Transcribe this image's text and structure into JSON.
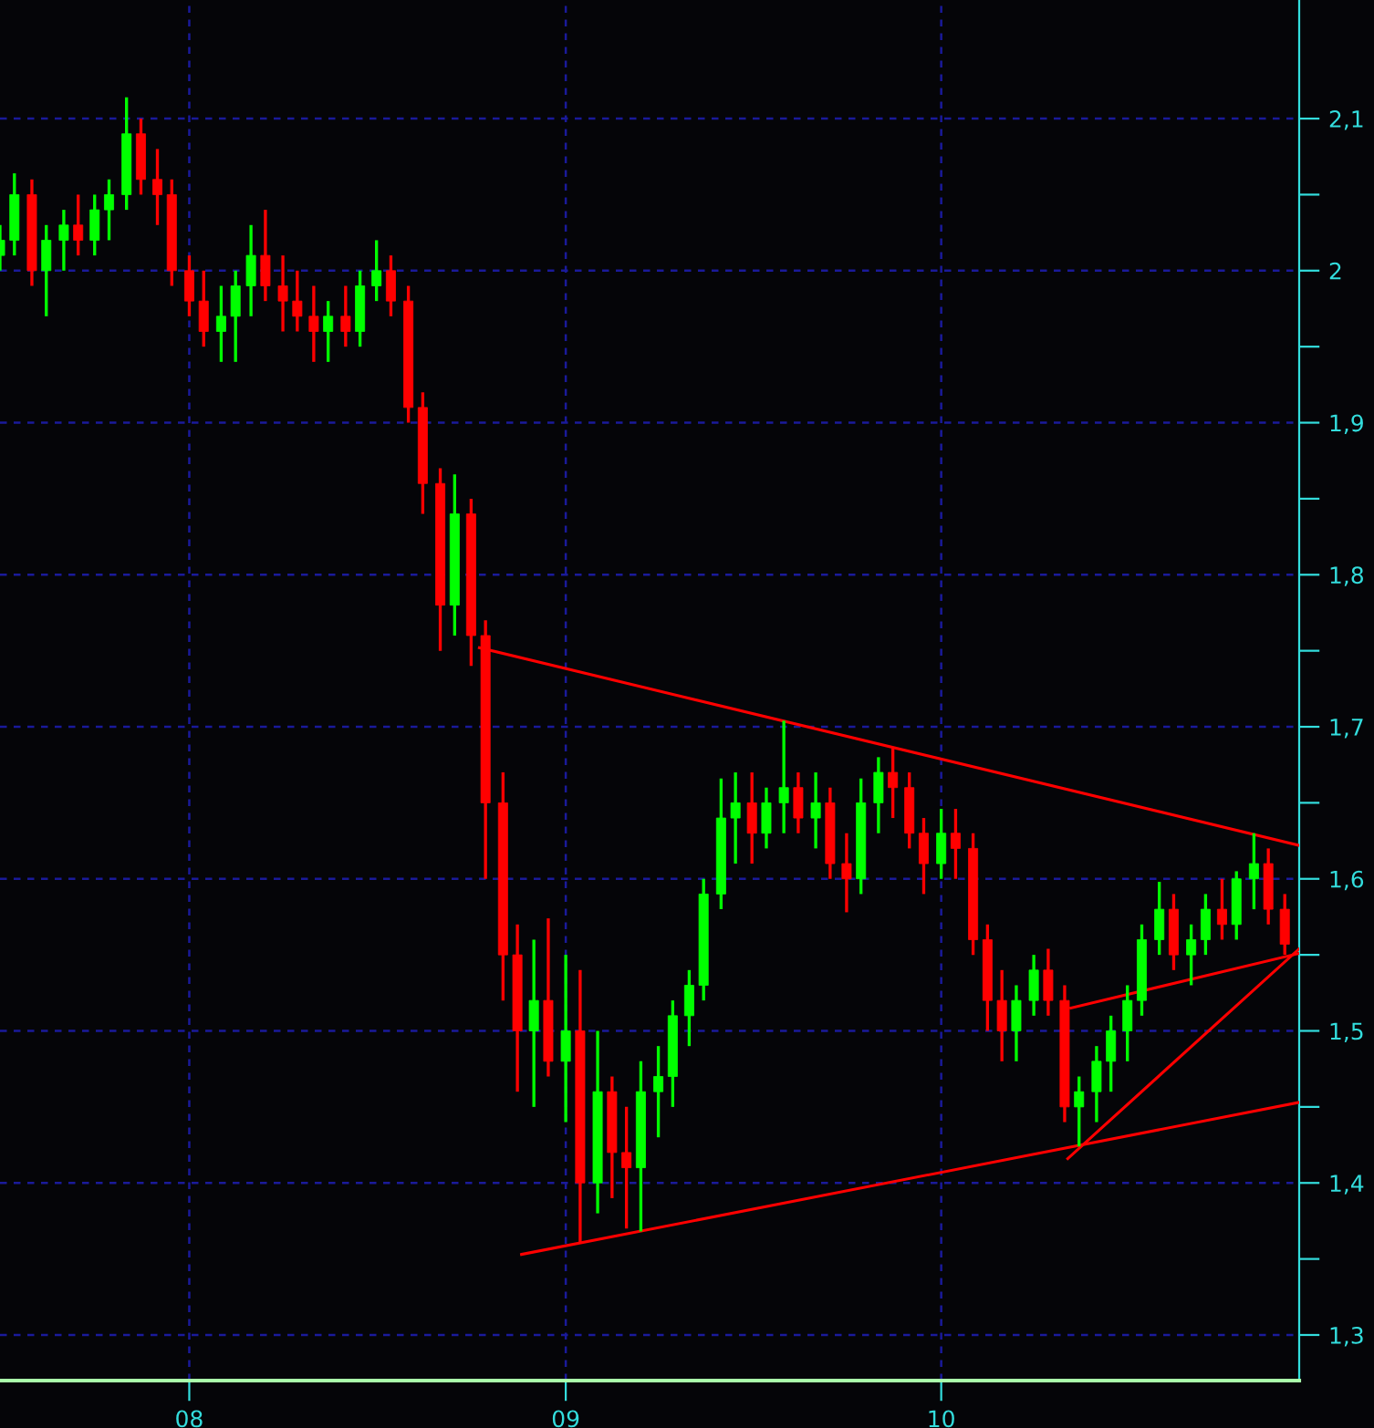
{
  "chart_data": {
    "type": "candlestick",
    "series": [
      {
        "type": "candlestick",
        "x": [
          "2007-07-01",
          "2007-07-15",
          "2007-08-01",
          "2007-08-15",
          "2007-09-01",
          "2007-09-15",
          "2007-10-01",
          "2007-10-15",
          "2007-11-01",
          "2007-11-15",
          "2007-12-01",
          "2007-12-15",
          "2008-01-01",
          "2008-01-15",
          "2008-02-01",
          "2008-02-15",
          "2008-03-01",
          "2008-03-15",
          "2008-04-01",
          "2008-04-15",
          "2008-05-01",
          "2008-05-15",
          "2008-06-01",
          "2008-06-15",
          "2008-07-01",
          "2008-07-15",
          "2008-08-01",
          "2008-08-15",
          "2008-09-01",
          "2008-09-15",
          "2008-10-01",
          "2008-10-15",
          "2008-11-01",
          "2008-11-15",
          "2008-12-01",
          "2008-12-15",
          "2009-01-01",
          "2009-01-15",
          "2009-02-01",
          "2009-02-15",
          "2009-03-01",
          "2009-03-15",
          "2009-04-01",
          "2009-04-15",
          "2009-05-01",
          "2009-05-15",
          "2009-06-01",
          "2009-06-15",
          "2009-07-01",
          "2009-07-15",
          "2009-08-01",
          "2009-08-15",
          "2009-09-01",
          "2009-09-15",
          "2009-10-01",
          "2009-10-15",
          "2009-11-01",
          "2009-11-15",
          "2009-12-01",
          "2009-12-15",
          "2010-01-01",
          "2010-01-15",
          "2010-02-01",
          "2010-02-15",
          "2010-03-01",
          "2010-03-15",
          "2010-04-01",
          "2010-04-15",
          "2010-05-01",
          "2010-05-15",
          "2010-06-01",
          "2010-06-15",
          "2010-07-01",
          "2010-07-15",
          "2010-08-01",
          "2010-08-15",
          "2010-09-01",
          "2010-09-15",
          "2010-10-01",
          "2010-10-15",
          "2010-11-01",
          "2010-11-15",
          "2010-12-01"
        ],
        "ohlc": [
          [
            2.01,
            2.03,
            2.0,
            2.02
          ],
          [
            2.02,
            2.064,
            2.01,
            2.05
          ],
          [
            2.05,
            2.06,
            1.99,
            2.0
          ],
          [
            2.0,
            2.03,
            1.97,
            2.02
          ],
          [
            2.02,
            2.04,
            2.0,
            2.03
          ],
          [
            2.03,
            2.05,
            2.01,
            2.02
          ],
          [
            2.02,
            2.05,
            2.01,
            2.04
          ],
          [
            2.04,
            2.06,
            2.02,
            2.05
          ],
          [
            2.05,
            2.114,
            2.04,
            2.09
          ],
          [
            2.09,
            2.1,
            2.05,
            2.06
          ],
          [
            2.06,
            2.08,
            2.03,
            2.05
          ],
          [
            2.05,
            2.06,
            1.99,
            2.0
          ],
          [
            2.0,
            2.01,
            1.97,
            1.98
          ],
          [
            1.98,
            2.0,
            1.95,
            1.96
          ],
          [
            1.96,
            1.99,
            1.94,
            1.97
          ],
          [
            1.97,
            2.0,
            1.94,
            1.99
          ],
          [
            1.99,
            2.03,
            1.97,
            2.01
          ],
          [
            2.01,
            2.04,
            1.98,
            1.99
          ],
          [
            1.99,
            2.01,
            1.96,
            1.98
          ],
          [
            1.98,
            2.0,
            1.96,
            1.97
          ],
          [
            1.97,
            1.99,
            1.94,
            1.96
          ],
          [
            1.96,
            1.98,
            1.94,
            1.97
          ],
          [
            1.97,
            1.99,
            1.95,
            1.96
          ],
          [
            1.96,
            2.0,
            1.95,
            1.99
          ],
          [
            1.99,
            2.02,
            1.98,
            2.0
          ],
          [
            2.0,
            2.01,
            1.97,
            1.98
          ],
          [
            1.98,
            1.99,
            1.9,
            1.91
          ],
          [
            1.91,
            1.92,
            1.84,
            1.86
          ],
          [
            1.86,
            1.87,
            1.75,
            1.78
          ],
          [
            1.78,
            1.866,
            1.76,
            1.84
          ],
          [
            1.84,
            1.85,
            1.74,
            1.76
          ],
          [
            1.76,
            1.77,
            1.6,
            1.65
          ],
          [
            1.65,
            1.67,
            1.52,
            1.55
          ],
          [
            1.55,
            1.57,
            1.46,
            1.5
          ],
          [
            1.5,
            1.56,
            1.45,
            1.52
          ],
          [
            1.52,
            1.574,
            1.47,
            1.48
          ],
          [
            1.48,
            1.55,
            1.44,
            1.5
          ],
          [
            1.5,
            1.54,
            1.36,
            1.4
          ],
          [
            1.4,
            1.5,
            1.38,
            1.46
          ],
          [
            1.46,
            1.47,
            1.39,
            1.42
          ],
          [
            1.42,
            1.45,
            1.37,
            1.41
          ],
          [
            1.41,
            1.48,
            1.368,
            1.46
          ],
          [
            1.46,
            1.49,
            1.43,
            1.47
          ],
          [
            1.47,
            1.52,
            1.45,
            1.51
          ],
          [
            1.51,
            1.54,
            1.49,
            1.53
          ],
          [
            1.53,
            1.6,
            1.52,
            1.59
          ],
          [
            1.59,
            1.666,
            1.58,
            1.64
          ],
          [
            1.64,
            1.67,
            1.61,
            1.65
          ],
          [
            1.65,
            1.67,
            1.61,
            1.63
          ],
          [
            1.63,
            1.66,
            1.62,
            1.65
          ],
          [
            1.65,
            1.704,
            1.63,
            1.66
          ],
          [
            1.66,
            1.67,
            1.63,
            1.64
          ],
          [
            1.64,
            1.67,
            1.62,
            1.65
          ],
          [
            1.65,
            1.66,
            1.6,
            1.61
          ],
          [
            1.61,
            1.63,
            1.578,
            1.6
          ],
          [
            1.6,
            1.666,
            1.59,
            1.65
          ],
          [
            1.65,
            1.68,
            1.63,
            1.67
          ],
          [
            1.67,
            1.686,
            1.64,
            1.66
          ],
          [
            1.66,
            1.67,
            1.62,
            1.63
          ],
          [
            1.63,
            1.64,
            1.59,
            1.61
          ],
          [
            1.61,
            1.646,
            1.6,
            1.63
          ],
          [
            1.63,
            1.646,
            1.6,
            1.62
          ],
          [
            1.62,
            1.63,
            1.55,
            1.56
          ],
          [
            1.56,
            1.57,
            1.5,
            1.52
          ],
          [
            1.52,
            1.54,
            1.48,
            1.5
          ],
          [
            1.5,
            1.53,
            1.48,
            1.52
          ],
          [
            1.52,
            1.55,
            1.51,
            1.54
          ],
          [
            1.54,
            1.554,
            1.51,
            1.52
          ],
          [
            1.52,
            1.53,
            1.44,
            1.45
          ],
          [
            1.45,
            1.47,
            1.424,
            1.46
          ],
          [
            1.46,
            1.49,
            1.44,
            1.48
          ],
          [
            1.48,
            1.51,
            1.46,
            1.5
          ],
          [
            1.5,
            1.53,
            1.48,
            1.52
          ],
          [
            1.52,
            1.57,
            1.51,
            1.56
          ],
          [
            1.56,
            1.598,
            1.55,
            1.58
          ],
          [
            1.58,
            1.59,
            1.54,
            1.55
          ],
          [
            1.55,
            1.57,
            1.53,
            1.56
          ],
          [
            1.56,
            1.59,
            1.55,
            1.58
          ],
          [
            1.58,
            1.6,
            1.56,
            1.57
          ],
          [
            1.57,
            1.605,
            1.56,
            1.6
          ],
          [
            1.6,
            1.63,
            1.58,
            1.61
          ],
          [
            1.61,
            1.62,
            1.57,
            1.58
          ],
          [
            1.58,
            1.59,
            1.55,
            1.557
          ]
        ],
        "colors": [
          "#00ff00",
          "#00ff00",
          "#ff0000",
          "#00ff00",
          "#00ff00",
          "#ff0000",
          "#00ff00",
          "#00ff00",
          "#00ff00",
          "#ff0000",
          "#ff0000",
          "#ff0000",
          "#ff0000",
          "#ff0000",
          "#00ff00",
          "#00ff00",
          "#00ff00",
          "#ff0000",
          "#ff0000",
          "#ff0000",
          "#ff0000",
          "#00ff00",
          "#ff0000",
          "#00ff00",
          "#00ff00",
          "#ff0000",
          "#ff0000",
          "#ff0000",
          "#ff0000",
          "#00ff00",
          "#ff0000",
          "#ff0000",
          "#ff0000",
          "#ff0000",
          "#00ff00",
          "#ff0000",
          "#00ff00",
          "#ff0000",
          "#00ff00",
          "#ff0000",
          "#ff0000",
          "#00ff00",
          "#00ff00",
          "#00ff00",
          "#00ff00",
          "#00ff00",
          "#00ff00",
          "#00ff00",
          "#ff0000",
          "#00ff00",
          "#00ff00",
          "#ff0000",
          "#00ff00",
          "#ff0000",
          "#ff0000",
          "#00ff00",
          "#00ff00",
          "#ff0000",
          "#ff0000",
          "#ff0000",
          "#00ff00",
          "#ff0000",
          "#ff0000",
          "#ff0000",
          "#ff0000",
          "#00ff00",
          "#00ff00",
          "#ff0000",
          "#ff0000",
          "#00ff00",
          "#00ff00",
          "#00ff00",
          "#00ff00",
          "#00ff00",
          "#00ff00",
          "#ff0000",
          "#00ff00",
          "#00ff00",
          "#ff0000",
          "#00ff00",
          "#00ff00",
          "#ff0000",
          "#ff0000"
        ]
      },
      {
        "type": "line",
        "color": "#ff0000",
        "x": [
          "2008-10-09",
          "2010-12-15"
        ],
        "values": [
          1.752,
          1.622
        ]
      },
      {
        "type": "line",
        "color": "#ff0000",
        "x": [
          "2008-11-19",
          "2010-12-15"
        ],
        "values": [
          1.353,
          1.453
        ]
      },
      {
        "type": "line",
        "color": "#ff0000",
        "x": [
          "2010-05-04",
          "2010-12-15"
        ],
        "values": [
          1.416,
          1.554
        ]
      },
      {
        "type": "line",
        "color": "#ff0000",
        "x": [
          "2010-05-07",
          "2010-12-15"
        ],
        "values": [
          1.515,
          1.551
        ]
      }
    ],
    "xlim": [
      "2007-07-01",
      "2010-12-15"
    ],
    "xticks": [
      {
        "value": "2008-01-01",
        "label": "08"
      },
      {
        "value": "2009-01-01",
        "label": "09"
      },
      {
        "value": "2010-01-01",
        "label": "10"
      }
    ],
    "ylim": [
      1.27,
      2.178
    ],
    "yticks": [
      {
        "value": 1.3,
        "label": "1,3"
      },
      {
        "value": 1.35,
        "label": null
      },
      {
        "value": 1.4,
        "label": "1,4"
      },
      {
        "value": 1.45,
        "label": null
      },
      {
        "value": 1.5,
        "label": "1,5"
      },
      {
        "value": 1.55,
        "label": null
      },
      {
        "value": 1.6,
        "label": "1,6"
      },
      {
        "value": 1.65,
        "label": null
      },
      {
        "value": 1.7,
        "label": "1,7"
      },
      {
        "value": 1.75,
        "label": null
      },
      {
        "value": 1.8,
        "label": "1,8"
      },
      {
        "value": 1.85,
        "label": null
      },
      {
        "value": 1.9,
        "label": "1,9"
      },
      {
        "value": 1.95,
        "label": null
      },
      {
        "value": 2,
        "label": "2"
      },
      {
        "value": 2.05,
        "label": null
      },
      {
        "value": 2.1,
        "label": "2,1"
      }
    ],
    "grid": true,
    "line_style": "solid"
  }
}
